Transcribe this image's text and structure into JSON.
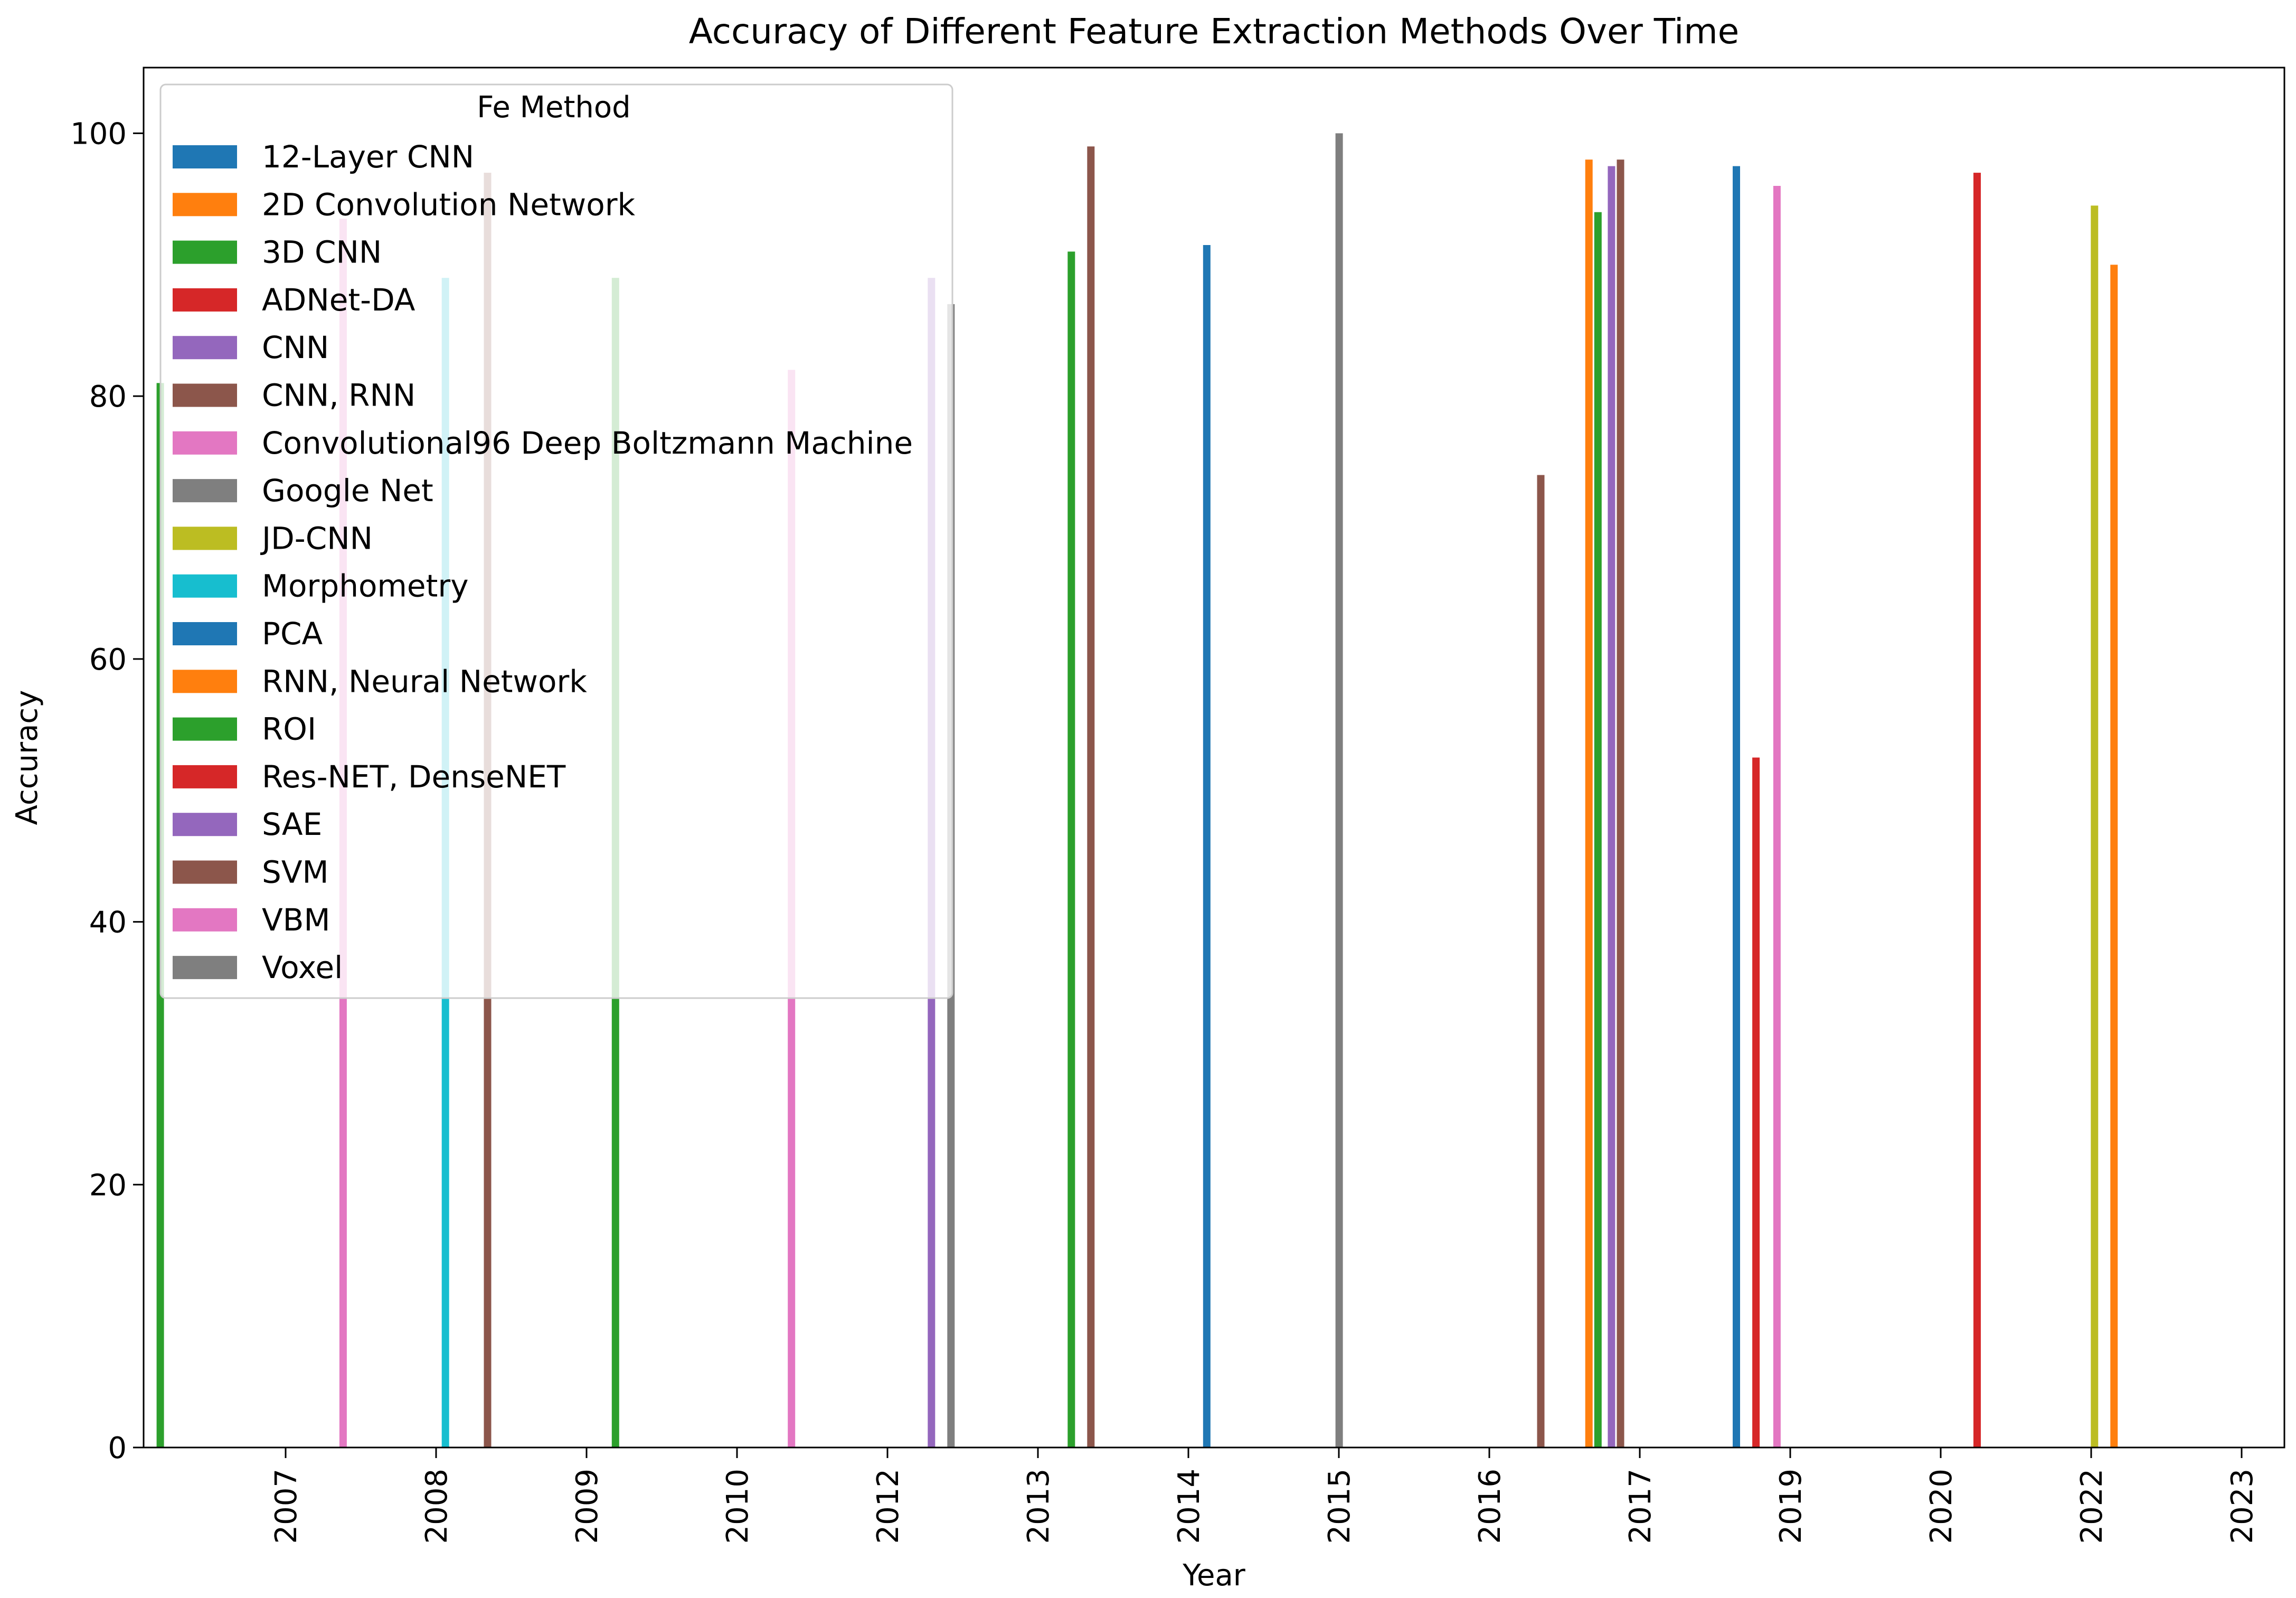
{
  "chart_data": {
    "type": "bar",
    "title": "Accuracy of Different Feature Extraction Methods Over Time",
    "xlabel": "Year",
    "ylabel": "Accuracy",
    "ylim": [
      0,
      105
    ],
    "yticks": [
      0,
      20,
      40,
      60,
      80,
      100
    ],
    "grid": false,
    "legend_title": "Fe Method",
    "legend_position": "top-left",
    "categories": [
      "2007",
      "2008",
      "2009",
      "2010",
      "2012",
      "2013",
      "2014",
      "2015",
      "2016",
      "2017",
      "2019",
      "2020",
      "2022",
      "2023"
    ],
    "series": [
      {
        "name": "12-Layer CNN",
        "color": "#1f77b4"
      },
      {
        "name": "2D Convolution Network",
        "color": "#ff7f0e"
      },
      {
        "name": "3D CNN",
        "color": "#2ca02c"
      },
      {
        "name": "ADNet-DA",
        "color": "#d62728"
      },
      {
        "name": "CNN",
        "color": "#9467bd"
      },
      {
        "name": "CNN, RNN",
        "color": "#8c564b"
      },
      {
        "name": "Convolutional96 Deep Boltzmann Machine",
        "color": "#e377c2"
      },
      {
        "name": "Google Net",
        "color": "#7f7f7f"
      },
      {
        "name": "JD-CNN",
        "color": "#bcbd22"
      },
      {
        "name": "Morphometry",
        "color": "#17becf"
      },
      {
        "name": "PCA",
        "color": "#1f77b4"
      },
      {
        "name": "RNN, Neural Network",
        "color": "#ff7f0e"
      },
      {
        "name": "ROI",
        "color": "#2ca02c"
      },
      {
        "name": "Res-NET, DenseNET",
        "color": "#d62728"
      },
      {
        "name": "SAE",
        "color": "#9467bd"
      },
      {
        "name": "SVM",
        "color": "#8c564b"
      },
      {
        "name": "VBM",
        "color": "#e377c2"
      },
      {
        "name": "Voxel",
        "color": "#7f7f7f"
      }
    ],
    "bars": [
      {
        "x": 2006.125,
        "series": "ROI",
        "value": 81
      },
      {
        "x": 2007.34,
        "series": "VBM",
        "value": 93.5
      },
      {
        "x": 2008.02,
        "series": "Morphometry",
        "value": 89
      },
      {
        "x": 2008.3,
        "series": "SVM",
        "value": 97
      },
      {
        "x": 2009.15,
        "series": "ROI",
        "value": 89
      },
      {
        "x": 2010.32,
        "series": "VBM",
        "value": 82
      },
      {
        "x": 2011.25,
        "series": "CNN",
        "value": 89
      },
      {
        "x": 2011.38,
        "series": "Voxel",
        "value": 87
      },
      {
        "x": 2012.18,
        "series": "3D CNN",
        "value": 91
      },
      {
        "x": 2012.31,
        "series": "CNN, RNN",
        "value": 99
      },
      {
        "x": 2013.08,
        "series": "PCA",
        "value": 91.5
      },
      {
        "x": 2013.96,
        "series": "Google Net",
        "value": 100
      },
      {
        "x": 2015.3,
        "series": "CNN, RNN",
        "value": 74
      },
      {
        "x": 2015.62,
        "series": "RNN, Neural Network",
        "value": 98
      },
      {
        "x": 2015.68,
        "series": "ROI",
        "value": 94
      },
      {
        "x": 2015.77,
        "series": "SAE",
        "value": 97.5
      },
      {
        "x": 2015.83,
        "series": "SVM",
        "value": 98
      },
      {
        "x": 2016.6,
        "series": "12-Layer CNN",
        "value": 97.5
      },
      {
        "x": 2016.73,
        "series": "ADNet-DA",
        "value": 52.5
      },
      {
        "x": 2016.87,
        "series": "Convolutional96 Deep Boltzmann Machine",
        "value": 96
      },
      {
        "x": 2018.2,
        "series": "Res-NET, DenseNET",
        "value": 97
      },
      {
        "x": 2018.98,
        "series": "JD-CNN",
        "value": 94.5
      },
      {
        "x": 2019.11,
        "series": "2D Convolution Network",
        "value": 90
      }
    ]
  }
}
